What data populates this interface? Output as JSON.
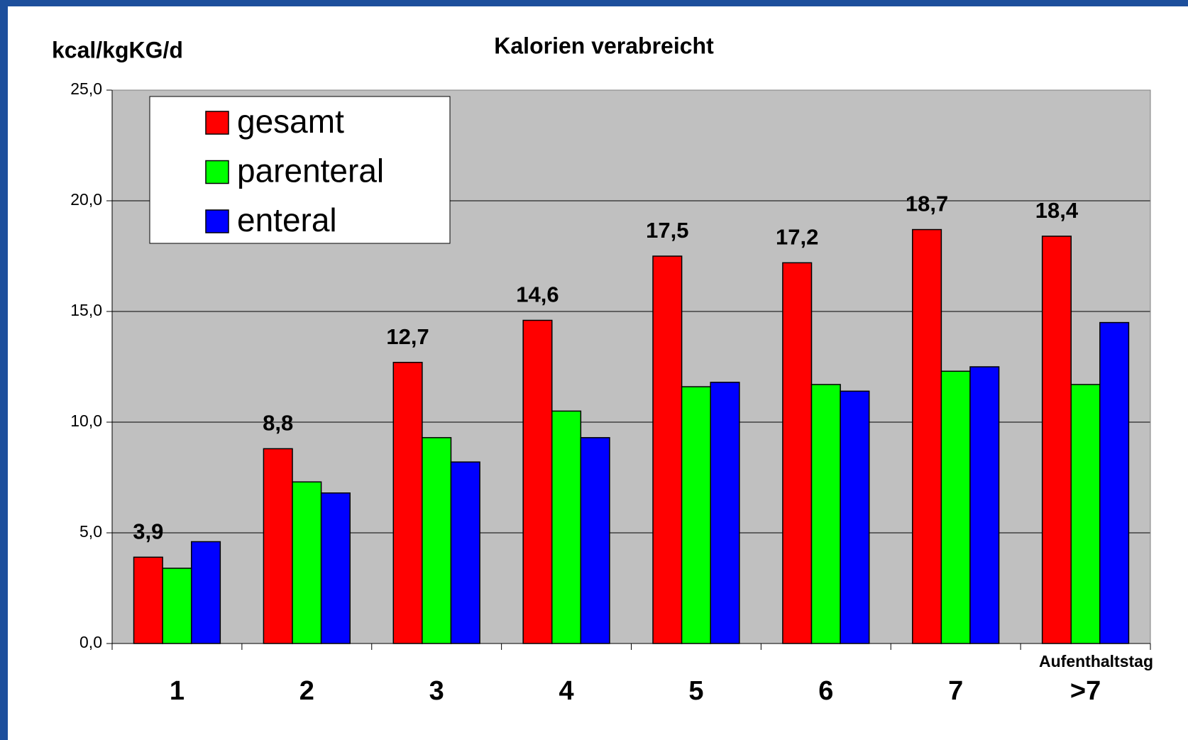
{
  "chart_data": {
    "type": "bar",
    "title": "Kalorien verabreicht",
    "y_label": "kcal/kgKG/d",
    "x_label": "Aufenthaltstag",
    "categories": [
      "1",
      "2",
      "3",
      "4",
      "5",
      "6",
      "7",
      ">7"
    ],
    "series": [
      {
        "name": "gesamt",
        "color": "#ff0000",
        "values": [
          3.9,
          8.8,
          12.7,
          14.6,
          17.5,
          17.2,
          18.7,
          18.4
        ],
        "value_labels": [
          "3,9",
          "8,8",
          "12,7",
          "14,6",
          "17,5",
          "17,2",
          "18,7",
          "18,4"
        ]
      },
      {
        "name": "parenteral",
        "color": "#00ff00",
        "values": [
          3.4,
          7.3,
          9.3,
          10.5,
          11.6,
          11.7,
          12.3,
          11.7
        ]
      },
      {
        "name": "enteral",
        "color": "#0000ff",
        "values": [
          4.6,
          6.8,
          8.2,
          9.3,
          11.8,
          11.4,
          12.5,
          14.5
        ]
      }
    ],
    "ylim": [
      0,
      25
    ],
    "yticks": [
      {
        "value": 0,
        "label": "0,0"
      },
      {
        "value": 5,
        "label": "5,0"
      },
      {
        "value": 10,
        "label": "10,0"
      },
      {
        "value": 15,
        "label": "15,0"
      },
      {
        "value": 20,
        "label": "20,0"
      },
      {
        "value": 25,
        "label": "25,0"
      }
    ],
    "grid": true,
    "legend": "upper left"
  }
}
